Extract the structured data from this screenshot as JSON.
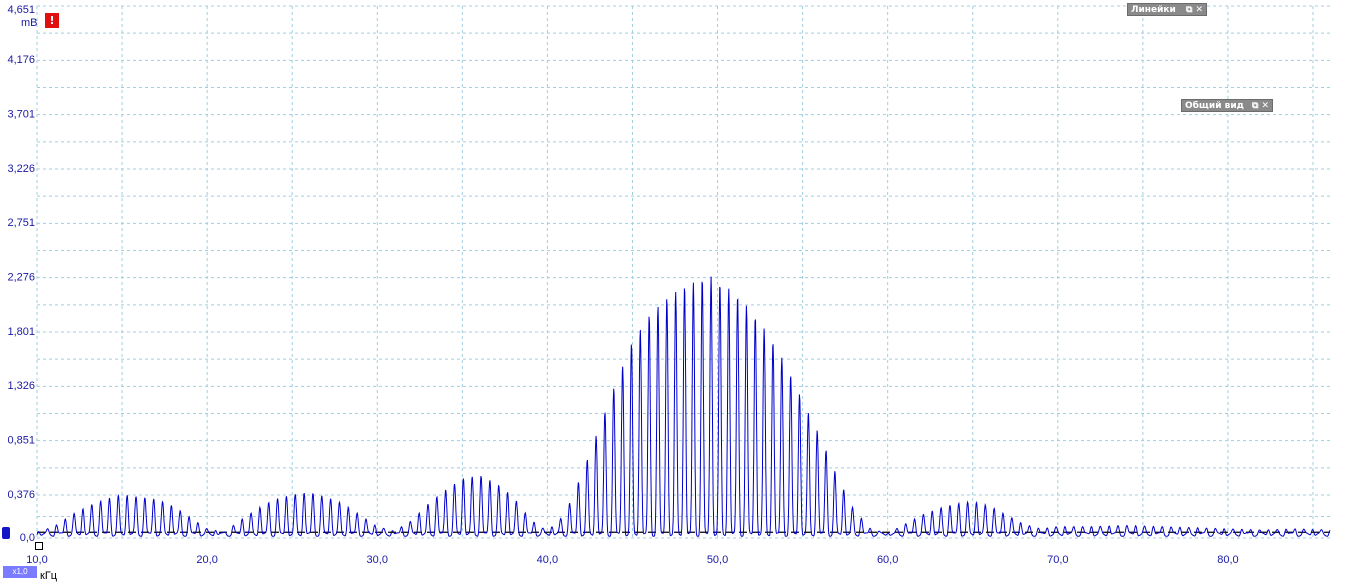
{
  "panels": {
    "rulers": {
      "label": "Линейки"
    },
    "overview": {
      "label": "Общий вид"
    }
  },
  "icons": {
    "restore": "restore-icon",
    "close": "close-icon",
    "warning": "warning-icon"
  },
  "warning_badge": "!",
  "scale_badge": "x1,0",
  "colors": {
    "trace": "#0000cc",
    "grid": "#9fcfe0",
    "axis_text": "#1a1aa6",
    "threshold": "#000000"
  },
  "chart_data": {
    "type": "line",
    "xlabel": "кГц",
    "ylabel": "mB",
    "x_ticks": [
      "10,0",
      "20,0",
      "30,0",
      "40,0",
      "50,0",
      "60,0",
      "70,0",
      "80,0"
    ],
    "y_ticks": [
      "0,0",
      "0,376",
      "0,851",
      "1,326",
      "1,801",
      "2,276",
      "2,751",
      "3,226",
      "3,701",
      "4,176",
      "4,651"
    ],
    "xlim": [
      10.0,
      86.0
    ],
    "ylim": [
      0.0,
      4.651
    ],
    "grid": true,
    "threshold_y": 0.05,
    "series": [
      {
        "x": [
          10.0,
          11.0,
          12.0,
          13.0,
          14.0,
          15.0,
          16.0,
          17.0,
          18.0,
          19.0,
          20.0,
          21.0,
          22.0,
          23.0,
          24.0,
          25.0,
          26.0,
          27.0,
          28.0,
          29.0,
          30.0,
          31.0,
          32.0,
          33.0,
          34.0,
          35.0,
          36.0,
          37.0,
          38.0,
          39.0,
          40.0,
          41.0,
          42.0,
          43.0,
          44.0,
          45.0,
          46.0,
          47.0,
          48.0,
          49.0,
          49.5,
          50.0,
          51.0,
          52.0,
          53.0,
          54.0,
          55.0,
          56.0,
          57.0,
          58.0,
          59.0,
          60.0,
          61.0,
          62.0,
          63.0,
          64.0,
          65.0,
          66.0,
          67.0,
          68.0,
          69.0,
          70.0,
          72.0,
          74.0,
          76.0,
          78.0,
          80.0,
          82.0,
          84.0,
          86.0
        ],
        "y": [
          0.05,
          0.1,
          0.2,
          0.28,
          0.34,
          0.38,
          0.36,
          0.34,
          0.28,
          0.18,
          0.08,
          0.05,
          0.16,
          0.26,
          0.34,
          0.38,
          0.4,
          0.36,
          0.3,
          0.2,
          0.1,
          0.06,
          0.15,
          0.3,
          0.42,
          0.52,
          0.55,
          0.48,
          0.36,
          0.16,
          0.06,
          0.2,
          0.55,
          0.95,
          1.35,
          1.72,
          1.95,
          2.1,
          2.2,
          2.26,
          2.3,
          2.24,
          2.15,
          1.98,
          1.78,
          1.52,
          1.2,
          0.9,
          0.55,
          0.25,
          0.08,
          0.04,
          0.12,
          0.2,
          0.26,
          0.3,
          0.32,
          0.28,
          0.2,
          0.12,
          0.08,
          0.1,
          0.1,
          0.11,
          0.1,
          0.09,
          0.08,
          0.07,
          0.08,
          0.07
        ]
      }
    ]
  }
}
